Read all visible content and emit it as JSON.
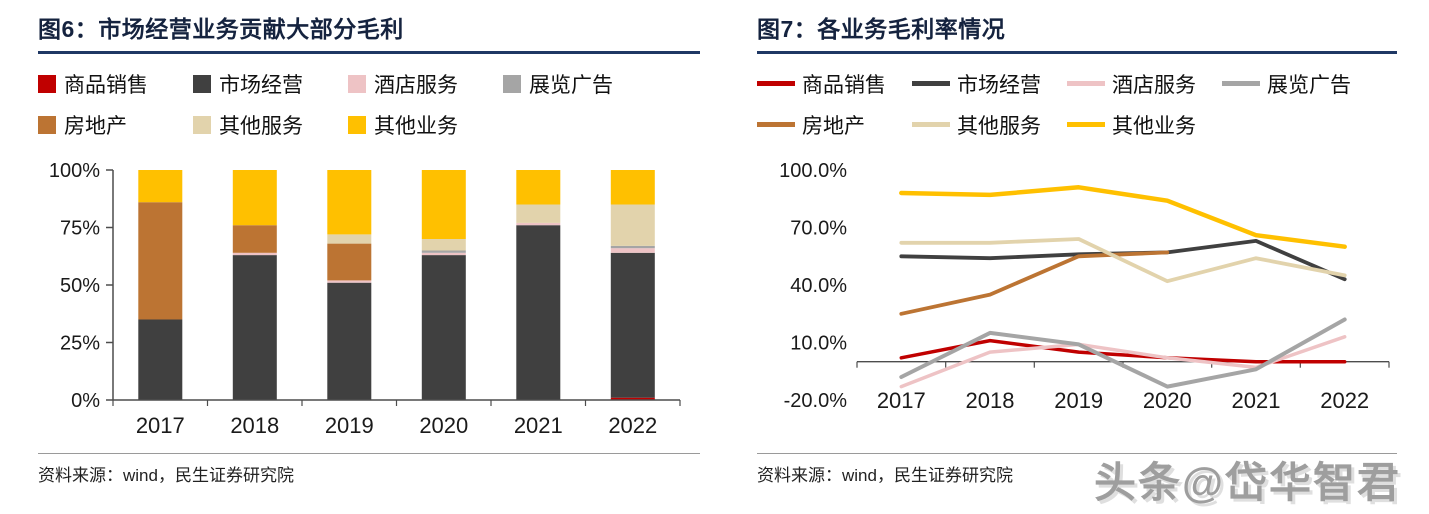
{
  "watermark": {
    "text": "头条@岱华智君"
  },
  "colors": {
    "title_text": "#15233f",
    "title_rule": "#1f3864",
    "axis": "#4d4d4d",
    "red": "#c00000",
    "dark_gray": "#404040",
    "pink": "#eec3c5",
    "gray": "#a5a5a5",
    "brown": "#bc7433",
    "tan": "#e2d3ac",
    "yellow": "#ffc000"
  },
  "chart_data": [
    {
      "id": "figure6",
      "type": "bar",
      "stacked": true,
      "title": "图6：市场经营业务贡献大部分毛利",
      "source": "资料来源：wind，民生证券研究院",
      "legend_position": "top",
      "grid": false,
      "categories": [
        "2017",
        "2018",
        "2019",
        "2020",
        "2021",
        "2022"
      ],
      "ylim": [
        0,
        100
      ],
      "y_ticks": [
        {
          "value": 0,
          "label": "0%"
        },
        {
          "value": 25,
          "label": "25%"
        },
        {
          "value": 50,
          "label": "50%"
        },
        {
          "value": 75,
          "label": "75%"
        },
        {
          "value": 100,
          "label": "100%"
        }
      ],
      "unit": "percent of gross profit",
      "series": [
        {
          "name": "商品销售",
          "color": "#c00000",
          "values": [
            0,
            0,
            0,
            0,
            0,
            1
          ]
        },
        {
          "name": "市场经营",
          "color": "#404040",
          "values": [
            35,
            63,
            51,
            63,
            76,
            63
          ]
        },
        {
          "name": "酒店服务",
          "color": "#eec3c5",
          "values": [
            0,
            1,
            1,
            1,
            1,
            2
          ]
        },
        {
          "name": "展览广告",
          "color": "#a5a5a5",
          "values": [
            0,
            0,
            0,
            1,
            0,
            1
          ]
        },
        {
          "name": "房地产",
          "color": "#bc7433",
          "values": [
            51,
            12,
            16,
            0,
            0,
            0
          ]
        },
        {
          "name": "其他服务",
          "color": "#e2d3ac",
          "values": [
            0,
            0,
            4,
            5,
            8,
            18
          ]
        },
        {
          "name": "其他业务",
          "color": "#ffc000",
          "values": [
            14,
            24,
            28,
            30,
            15,
            15
          ]
        }
      ]
    },
    {
      "id": "figure7",
      "type": "line",
      "title": "图7：各业务毛利率情况",
      "source": "资料来源：wind，民生证券研究院",
      "legend_position": "top",
      "grid": false,
      "categories": [
        "2017",
        "2018",
        "2019",
        "2020",
        "2021",
        "2022"
      ],
      "ylim": [
        -20,
        100
      ],
      "y_ticks": [
        {
          "value": -20,
          "label": "-20.0%"
        },
        {
          "value": 10,
          "label": "10.0%"
        },
        {
          "value": 40,
          "label": "40.0%"
        },
        {
          "value": 70,
          "label": "70.0%"
        },
        {
          "value": 100,
          "label": "100.0%"
        }
      ],
      "unit": "gross margin percent",
      "series": [
        {
          "name": "商品销售",
          "color": "#c00000",
          "line_width": 3.5,
          "values": [
            2,
            11,
            5,
            2,
            0,
            0
          ]
        },
        {
          "name": "市场经营",
          "color": "#404040",
          "line_width": 3.8,
          "values": [
            55,
            54,
            56,
            57,
            63,
            43
          ]
        },
        {
          "name": "酒店服务",
          "color": "#eec3c5",
          "line_width": 3.5,
          "values": [
            -13,
            5,
            9,
            2,
            -3,
            13
          ]
        },
        {
          "name": "展览广告",
          "color": "#a5a5a5",
          "line_width": 4.0,
          "values": [
            -8,
            15,
            9,
            -13,
            -4,
            22
          ]
        },
        {
          "name": "房地产",
          "color": "#bc7433",
          "line_width": 3.8,
          "values": [
            25,
            35,
            55,
            57,
            null,
            null
          ]
        },
        {
          "name": "其他服务",
          "color": "#e2d3ac",
          "line_width": 3.8,
          "values": [
            62,
            62,
            64,
            42,
            54,
            45
          ]
        },
        {
          "name": "其他业务",
          "color": "#ffc000",
          "line_width": 4.5,
          "values": [
            88,
            87,
            91,
            84,
            66,
            60
          ]
        }
      ]
    }
  ]
}
